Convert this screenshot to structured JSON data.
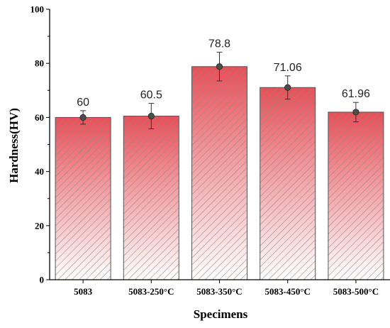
{
  "chart_data": {
    "type": "bar",
    "title": "",
    "xlabel": "Specimens",
    "ylabel": "Hardness(HV)",
    "categories": [
      "5083",
      "5083-250°C",
      "5083-350°C",
      "5083-450°C",
      "5083-500°C"
    ],
    "values": [
      60,
      60.5,
      78.8,
      71.06,
      61.96
    ],
    "value_labels": [
      "60",
      "60.5",
      "78.8",
      "71.06",
      "61.96"
    ],
    "error_bars": [
      2.5,
      4.7,
      5.3,
      4.3,
      3.6
    ],
    "ylim": [
      0,
      100
    ],
    "yticks": [
      "0",
      "20",
      "40",
      "60",
      "80",
      "100"
    ],
    "grid": false,
    "legend": "none",
    "bar_fill": "hatched gradient",
    "colors": {
      "bar_top": "#e94f57",
      "bar_bottom": "#ffffff",
      "hatch": "#8a8a8a",
      "bar_edge": "#555555",
      "marker": "#4d4d4d",
      "axis": "#000000"
    }
  }
}
